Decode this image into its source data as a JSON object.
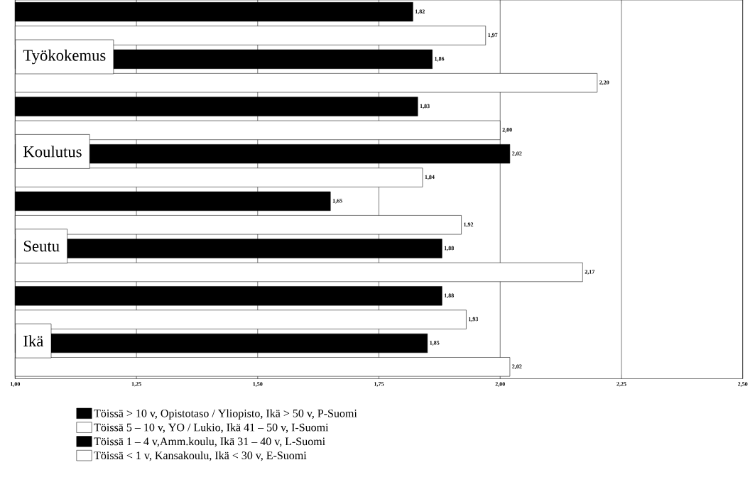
{
  "chart_data": {
    "type": "bar",
    "orientation": "horizontal",
    "categories": [
      "Työkokemus",
      "Koulutus",
      "Seutu",
      "Ikä"
    ],
    "series": [
      {
        "name": "Töissä > 10 v, Opistotaso / Yliopisto, Ikä > 50 v, P-Suomi",
        "color": "#000000",
        "values": [
          1.82,
          1.83,
          1.65,
          1.88
        ],
        "value_labels": [
          "1,82",
          "1,83",
          "1,65",
          "1,88"
        ]
      },
      {
        "name": "Töissä 5 – 10 v, YO / Lukio, Ikä 41 – 50 v, I-Suomi",
        "color": "#ffffff",
        "values": [
          1.97,
          2.0,
          1.92,
          1.93
        ],
        "value_labels": [
          "1,97",
          "2,00",
          "1,92",
          "1,93"
        ]
      },
      {
        "name": "Töissä 1 – 4 v,Amm.koulu, Ikä 31 – 40 v, L-Suomi",
        "color": "#000000",
        "values": [
          1.86,
          2.02,
          1.88,
          1.85
        ],
        "value_labels": [
          "1,86",
          "2,02",
          "1,88",
          "1,85"
        ]
      },
      {
        "name": "Töissä < 1 v, Kansakoulu, Ikä < 30 v, E-Suomi",
        "color": "#ffffff",
        "values": [
          2.2,
          1.84,
          2.17,
          2.02
        ],
        "value_labels": [
          "2,20",
          "1,84",
          "2,17",
          "2,02"
        ]
      }
    ],
    "xlim": [
      1.0,
      2.5
    ],
    "xticks": [
      {
        "value": 1.0,
        "label": "1,00"
      },
      {
        "value": 1.25,
        "label": "1,25"
      },
      {
        "value": 1.5,
        "label": "1,50"
      },
      {
        "value": 1.75,
        "label": "1,75"
      },
      {
        "value": 2.0,
        "label": "2,00"
      },
      {
        "value": 2.25,
        "label": "2,25"
      },
      {
        "value": 2.5,
        "label": "2,50"
      }
    ],
    "grid": "x",
    "legend": "bottom"
  }
}
